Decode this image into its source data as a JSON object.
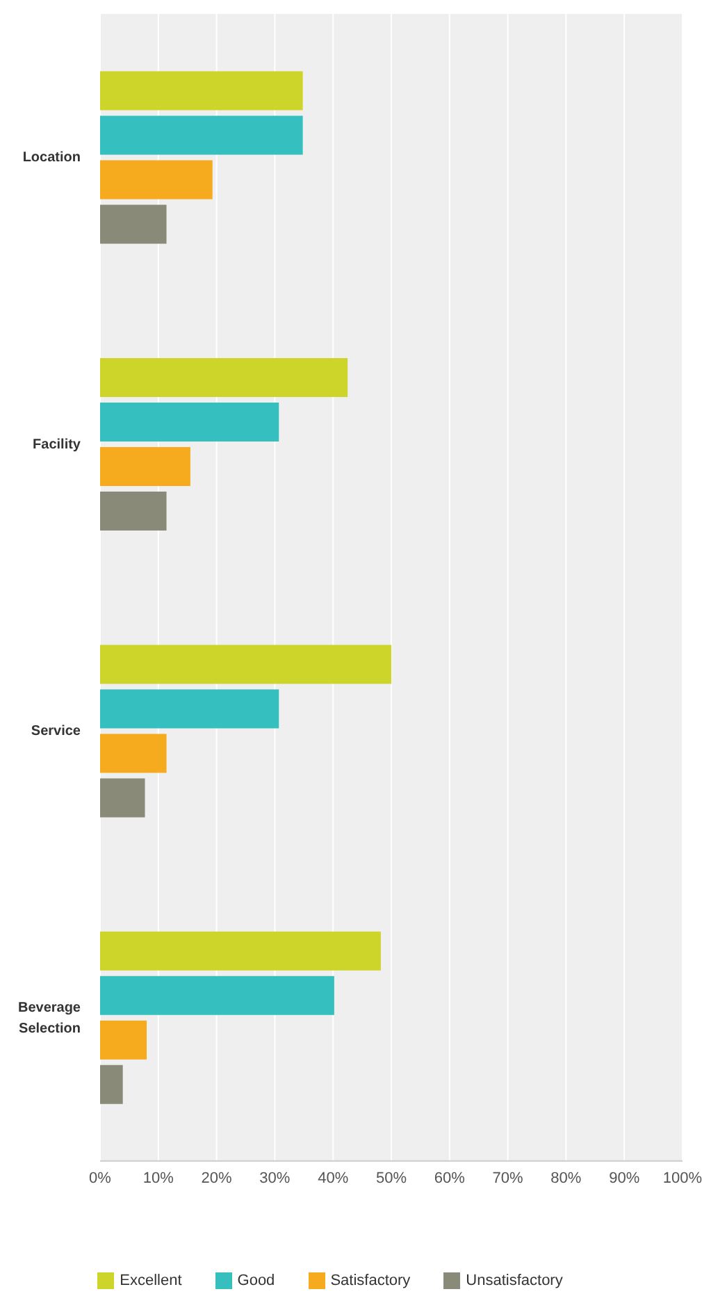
{
  "chart_data": {
    "type": "bar",
    "orientation": "horizontal",
    "categories": [
      "Location",
      "Facility",
      "Service",
      "Beverage Selection"
    ],
    "series": [
      {
        "name": "Excellent",
        "color": "#cdd42a",
        "values": [
          34.8,
          42.5,
          50,
          48.2
        ]
      },
      {
        "name": "Good",
        "color": "#35bfbf",
        "values": [
          34.8,
          30.7,
          30.7,
          40.2
        ]
      },
      {
        "name": "Satisfactory",
        "color": "#f6aa1e",
        "values": [
          19.3,
          15.5,
          11.4,
          8
        ]
      },
      {
        "name": "Unsatisfactory",
        "color": "#8a8a78",
        "values": [
          11.4,
          11.4,
          7.7,
          3.9
        ]
      }
    ],
    "xlim": [
      0,
      100
    ],
    "xticks": [
      {
        "value": 0,
        "label": "0%"
      },
      {
        "value": 10,
        "label": "10%"
      },
      {
        "value": 20,
        "label": "20%"
      },
      {
        "value": 30,
        "label": "30%"
      },
      {
        "value": 40,
        "label": "40%"
      },
      {
        "value": 50,
        "label": "50%"
      },
      {
        "value": 60,
        "label": "60%"
      },
      {
        "value": 70,
        "label": "70%"
      },
      {
        "value": 80,
        "label": "80%"
      },
      {
        "value": 90,
        "label": "90%"
      },
      {
        "value": 100,
        "label": "100%"
      }
    ],
    "grid": "x",
    "legend": "bottom"
  }
}
